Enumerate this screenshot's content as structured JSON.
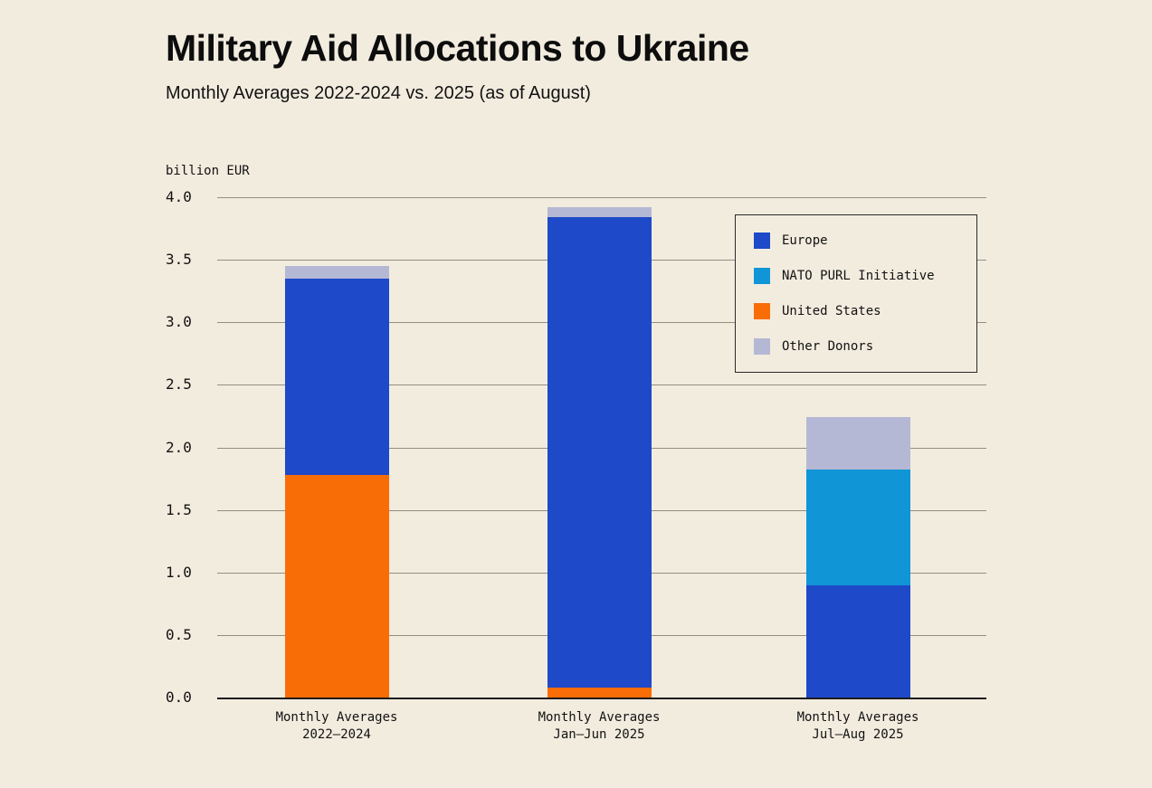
{
  "title": "Military Aid Allocations to Ukraine",
  "subtitle": "Monthly Averages 2022-2024 vs. 2025 (as of August)",
  "legend": {
    "items": [
      {
        "label": "Europe",
        "color": "#1e49c8"
      },
      {
        "label": "NATO PURL Initiative",
        "color": "#1095d6"
      },
      {
        "label": "United States",
        "color": "#f96d07"
      },
      {
        "label": "Other Donors",
        "color": "#b5b8d4"
      }
    ]
  },
  "chart_data": {
    "type": "bar",
    "stacked": true,
    "title": "Military Aid Allocations to Ukraine",
    "subtitle": "Monthly Averages 2022-2024 vs. 2025 (as of August)",
    "unit_label": "billion EUR",
    "ylabel": "billion EUR",
    "xlabel": "",
    "ylim": [
      0,
      4.0
    ],
    "ytick_step": 0.5,
    "yticks": [
      "4.0",
      "3.5",
      "3.0",
      "2.5",
      "2.0",
      "1.5",
      "1.0",
      "0.5",
      "0.0"
    ],
    "grid": true,
    "legend_position": "upper right",
    "categories": [
      [
        "Monthly Averages",
        "2022–2024"
      ],
      [
        "Monthly Averages",
        "Jan–Jun 2025"
      ],
      [
        "Monthly Averages",
        "Jul–Aug 2025"
      ]
    ],
    "stack_order_note": "series listed bottom-to-top of each stacked bar",
    "series": [
      {
        "name": "United States",
        "color": "#f96d07",
        "values": [
          1.78,
          0.08,
          0
        ]
      },
      {
        "name": "Europe",
        "color": "#1e49c8",
        "values": [
          1.57,
          3.76,
          0.9
        ]
      },
      {
        "name": "NATO PURL Initiative",
        "color": "#1095d6",
        "values": [
          0,
          0,
          0.92
        ]
      },
      {
        "name": "Other Donors",
        "color": "#b5b8d4",
        "values": [
          0.1,
          0.08,
          0.42
        ]
      }
    ],
    "totals": [
      3.45,
      3.92,
      2.24
    ]
  }
}
